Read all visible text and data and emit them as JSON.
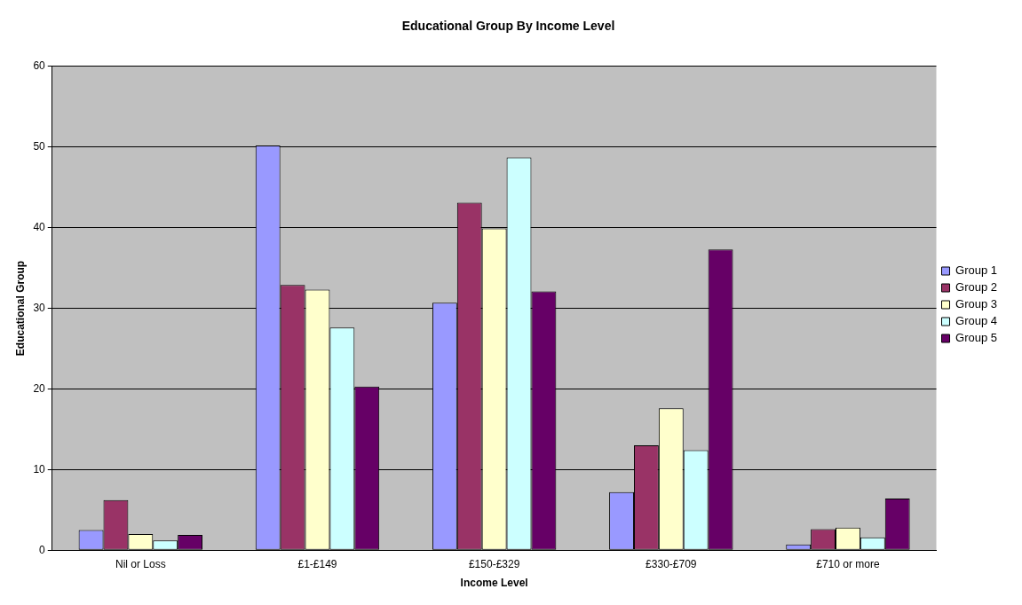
{
  "chart_data": {
    "type": "bar",
    "title": "Educational Group By Income Level",
    "xlabel": "Income Level",
    "ylabel": "Educational Group",
    "categories": [
      "Nil or Loss",
      "£1-£149",
      "£150-£329",
      "£330-£709",
      "£710 or more"
    ],
    "series": [
      {
        "name": "Group 1",
        "color": "#9999ff",
        "values": [
          2.5,
          50.2,
          30.7,
          7.2,
          0.7
        ]
      },
      {
        "name": "Group 2",
        "color": "#993366",
        "values": [
          6.2,
          32.9,
          43.1,
          13.0,
          2.6
        ]
      },
      {
        "name": "Group 3",
        "color": "#ffffcc",
        "values": [
          2.0,
          32.3,
          39.9,
          17.6,
          2.8
        ]
      },
      {
        "name": "Group 4",
        "color": "#ccffff",
        "values": [
          1.2,
          27.6,
          48.7,
          12.4,
          1.6
        ]
      },
      {
        "name": "Group 5",
        "color": "#660066",
        "values": [
          1.9,
          20.3,
          32.1,
          37.3,
          6.4
        ]
      }
    ],
    "ylim": [
      0,
      60
    ],
    "yticks": [
      0,
      10,
      20,
      30,
      40,
      50,
      60
    ],
    "grid": "y",
    "legend": "right"
  }
}
